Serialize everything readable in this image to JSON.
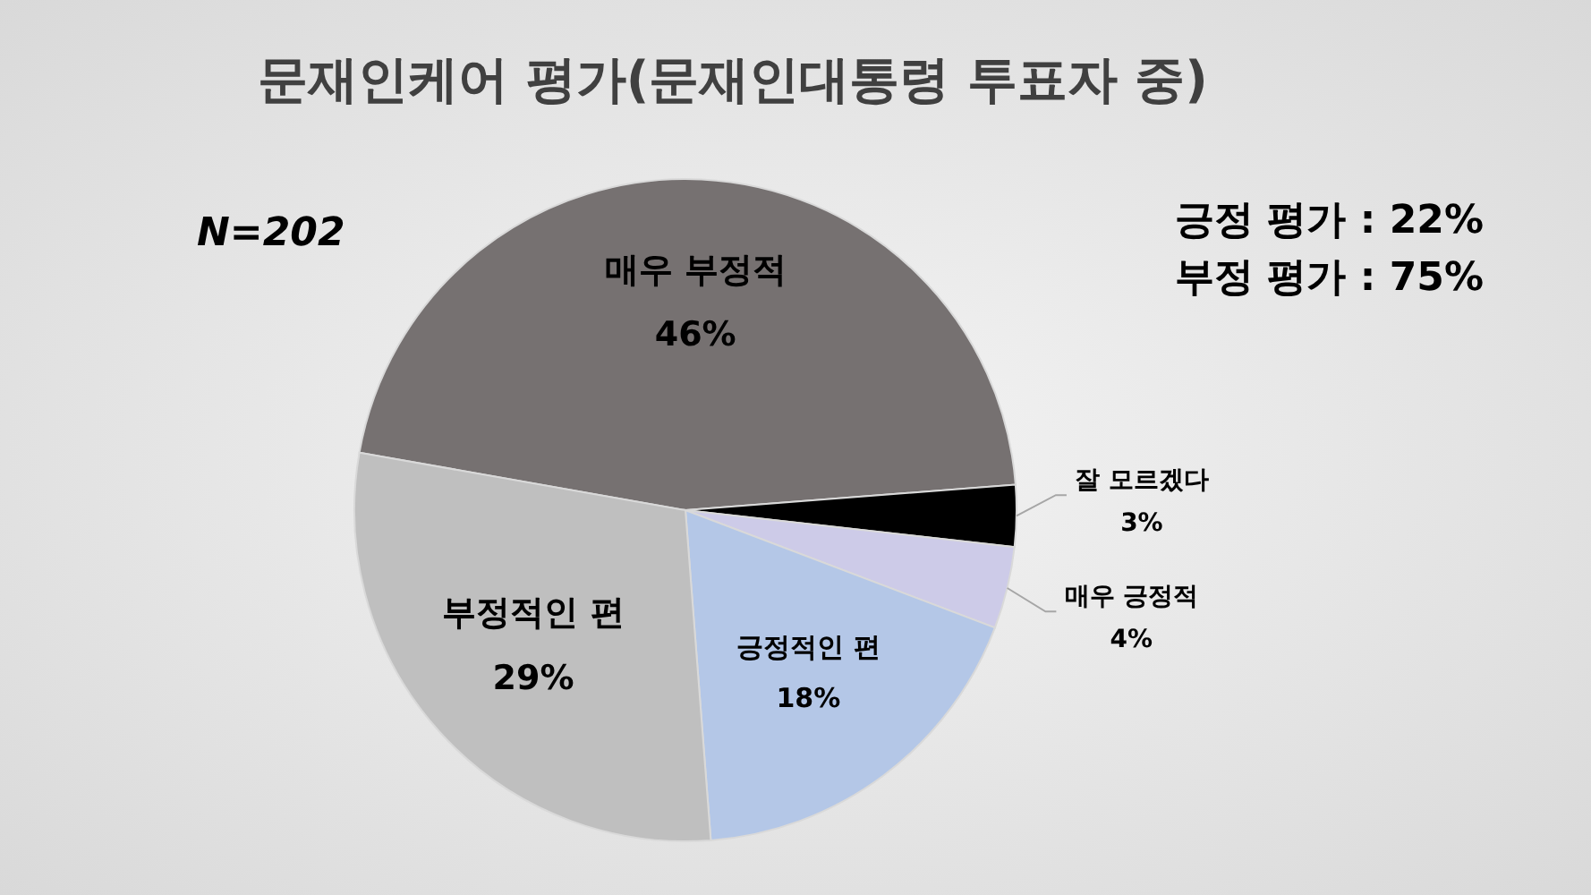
{
  "chart_data": {
    "type": "pie",
    "title": "문재인케어 평가(문재인대통령 투표자 중)",
    "categories": [
      "매우 부정적",
      "잘 모르겠다",
      "매우 긍정적",
      "긍정적인 편",
      "부정적인 편"
    ],
    "values": [
      46,
      3,
      4,
      18,
      29
    ],
    "value_labels": [
      "46%",
      "3%",
      "4%",
      "18%",
      "29%"
    ],
    "colors": [
      "#767171",
      "#000000",
      "#cdcbe8",
      "#b4c7e7",
      "#bfbfbf"
    ],
    "annotations": [
      "N=202",
      "긍정 평가 : 22%",
      "부정 평가 : 75%"
    ],
    "legend": false
  }
}
